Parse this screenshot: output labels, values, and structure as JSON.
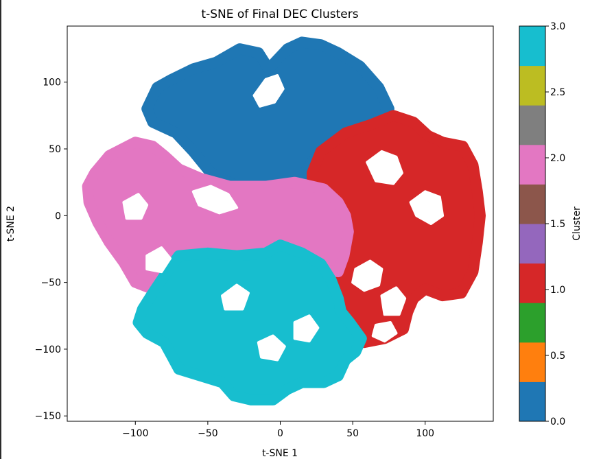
{
  "chart_data": {
    "type": "scatter",
    "title": "t-SNE of Final DEC Clusters",
    "xlabel": "t-SNE 1",
    "ylabel": "t-SNE 2",
    "xlim": [
      -147,
      147
    ],
    "ylim": [
      -154,
      142
    ],
    "xticks": [
      -100,
      -50,
      0,
      50,
      100
    ],
    "xtick_labels": [
      "−100",
      "−50",
      "0",
      "50",
      "100"
    ],
    "yticks": [
      -150,
      -100,
      -50,
      0,
      50,
      100
    ],
    "ytick_labels": [
      "−150",
      "−100",
      "−50",
      "0",
      "50",
      "100"
    ],
    "grid": false,
    "legend": "none",
    "clusters": [
      {
        "cluster": 0,
        "color": "#1f77b4",
        "outline": [
          [
            -44,
            115
          ],
          [
            -28,
            125
          ],
          [
            -15,
            122
          ],
          [
            -8,
            110
          ],
          [
            5,
            125
          ],
          [
            15,
            130
          ],
          [
            28,
            128
          ],
          [
            40,
            122
          ],
          [
            55,
            112
          ],
          [
            68,
            96
          ],
          [
            75,
            80
          ],
          [
            65,
            70
          ],
          [
            48,
            60
          ],
          [
            32,
            52
          ],
          [
            22,
            40
          ],
          [
            12,
            25
          ],
          [
            -5,
            20
          ],
          [
            -30,
            22
          ],
          [
            -48,
            32
          ],
          [
            -60,
            48
          ],
          [
            -72,
            62
          ],
          [
            -88,
            70
          ],
          [
            -92,
            80
          ],
          [
            -85,
            96
          ],
          [
            -75,
            102
          ],
          [
            -60,
            110
          ]
        ]
      },
      {
        "cluster": 1,
        "color": "#d62728",
        "outline": [
          [
            28,
            48
          ],
          [
            45,
            62
          ],
          [
            62,
            68
          ],
          [
            78,
            75
          ],
          [
            92,
            70
          ],
          [
            102,
            60
          ],
          [
            112,
            55
          ],
          [
            126,
            52
          ],
          [
            133,
            38
          ],
          [
            136,
            18
          ],
          [
            138,
            0
          ],
          [
            136,
            -20
          ],
          [
            133,
            -42
          ],
          [
            125,
            -58
          ],
          [
            112,
            -60
          ],
          [
            100,
            -55
          ],
          [
            92,
            -62
          ],
          [
            88,
            -72
          ],
          [
            85,
            -85
          ],
          [
            72,
            -92
          ],
          [
            58,
            -95
          ],
          [
            45,
            -88
          ],
          [
            42,
            -75
          ],
          [
            38,
            -58
          ],
          [
            36,
            -40
          ],
          [
            30,
            -22
          ],
          [
            24,
            -5
          ],
          [
            22,
            12
          ],
          [
            22,
            32
          ]
        ]
      },
      {
        "cluster": 2,
        "color": "#e377c2",
        "outline": [
          [
            -118,
            45
          ],
          [
            -100,
            55
          ],
          [
            -88,
            52
          ],
          [
            -80,
            45
          ],
          [
            -70,
            35
          ],
          [
            -55,
            28
          ],
          [
            -35,
            22
          ],
          [
            -10,
            22
          ],
          [
            10,
            25
          ],
          [
            30,
            20
          ],
          [
            40,
            10
          ],
          [
            45,
            0
          ],
          [
            47,
            -12
          ],
          [
            44,
            -30
          ],
          [
            40,
            -42
          ],
          [
            26,
            -40
          ],
          [
            12,
            -34
          ],
          [
            -5,
            -32
          ],
          [
            -25,
            -30
          ],
          [
            -45,
            -30
          ],
          [
            -58,
            -28
          ],
          [
            -65,
            -40
          ],
          [
            -72,
            -52
          ],
          [
            -88,
            -55
          ],
          [
            -100,
            -50
          ],
          [
            -108,
            -35
          ],
          [
            -118,
            -20
          ],
          [
            -126,
            -5
          ],
          [
            -132,
            10
          ],
          [
            -133,
            22
          ],
          [
            -128,
            32
          ]
        ]
      },
      {
        "cluster": 3,
        "color": "#17becf",
        "outline": [
          [
            -70,
            -30
          ],
          [
            -50,
            -28
          ],
          [
            -30,
            -30
          ],
          [
            -10,
            -28
          ],
          [
            0,
            -22
          ],
          [
            15,
            -28
          ],
          [
            28,
            -36
          ],
          [
            35,
            -48
          ],
          [
            40,
            -62
          ],
          [
            42,
            -72
          ],
          [
            48,
            -80
          ],
          [
            56,
            -92
          ],
          [
            52,
            -102
          ],
          [
            45,
            -108
          ],
          [
            40,
            -120
          ],
          [
            30,
            -125
          ],
          [
            15,
            -125
          ],
          [
            5,
            -130
          ],
          [
            -5,
            -138
          ],
          [
            -20,
            -138
          ],
          [
            -32,
            -135
          ],
          [
            -40,
            -125
          ],
          [
            -55,
            -120
          ],
          [
            -70,
            -115
          ],
          [
            -75,
            -105
          ],
          [
            -80,
            -95
          ],
          [
            -92,
            -88
          ],
          [
            -98,
            -80
          ],
          [
            -95,
            -70
          ],
          [
            -88,
            -58
          ],
          [
            -80,
            -45
          ]
        ]
      }
    ],
    "holes": [
      [
        [
          -18,
          90
        ],
        [
          -10,
          102
        ],
        [
          -2,
          105
        ],
        [
          2,
          95
        ],
        [
          -4,
          85
        ],
        [
          -14,
          82
        ]
      ],
      [
        [
          -60,
          18
        ],
        [
          -48,
          22
        ],
        [
          -36,
          16
        ],
        [
          -30,
          6
        ],
        [
          -42,
          2
        ],
        [
          -56,
          8
        ]
      ],
      [
        [
          60,
          40
        ],
        [
          70,
          48
        ],
        [
          80,
          44
        ],
        [
          84,
          32
        ],
        [
          78,
          24
        ],
        [
          66,
          26
        ]
      ],
      [
        [
          90,
          10
        ],
        [
          100,
          18
        ],
        [
          110,
          14
        ],
        [
          112,
          0
        ],
        [
          104,
          -6
        ],
        [
          94,
          0
        ]
      ],
      [
        [
          52,
          -40
        ],
        [
          62,
          -34
        ],
        [
          70,
          -40
        ],
        [
          68,
          -52
        ],
        [
          58,
          -56
        ],
        [
          50,
          -50
        ]
      ],
      [
        [
          70,
          -60
        ],
        [
          80,
          -54
        ],
        [
          86,
          -62
        ],
        [
          82,
          -74
        ],
        [
          72,
          -74
        ]
      ],
      [
        [
          -108,
          10
        ],
        [
          -98,
          16
        ],
        [
          -92,
          8
        ],
        [
          -96,
          -2
        ],
        [
          -106,
          -2
        ]
      ],
      [
        [
          -92,
          -30
        ],
        [
          -82,
          -24
        ],
        [
          -76,
          -32
        ],
        [
          -82,
          -42
        ],
        [
          -92,
          -40
        ]
      ],
      [
        [
          -40,
          -60
        ],
        [
          -30,
          -52
        ],
        [
          -22,
          -58
        ],
        [
          -26,
          -70
        ],
        [
          -38,
          -70
        ]
      ],
      [
        [
          -15,
          -95
        ],
        [
          -5,
          -90
        ],
        [
          3,
          -98
        ],
        [
          -2,
          -108
        ],
        [
          -13,
          -106
        ]
      ],
      [
        [
          10,
          -80
        ],
        [
          20,
          -75
        ],
        [
          26,
          -84
        ],
        [
          20,
          -94
        ],
        [
          10,
          -92
        ]
      ],
      [
        [
          66,
          -82
        ],
        [
          76,
          -80
        ],
        [
          80,
          -88
        ],
        [
          72,
          -94
        ],
        [
          64,
          -90
        ]
      ]
    ],
    "colorbar": {
      "label": "Cluster",
      "ticks": [
        0.0,
        0.5,
        1.0,
        1.5,
        2.0,
        2.5,
        3.0
      ],
      "tick_labels": [
        "0.0",
        "0.5",
        "1.0",
        "1.5",
        "2.0",
        "2.5",
        "3.0"
      ],
      "range": [
        0,
        3
      ],
      "colors": [
        "#1f77b4",
        "#ff7f0e",
        "#2ca02c",
        "#d62728",
        "#9467bd",
        "#8c564b",
        "#e377c2",
        "#7f7f7f",
        "#bcbd22",
        "#17becf"
      ]
    }
  }
}
